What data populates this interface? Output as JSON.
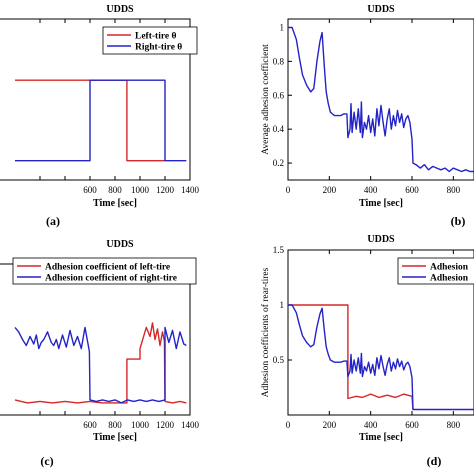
{
  "colors": {
    "red": "#d62728",
    "blue": "#2323c8",
    "axis": "#000000"
  },
  "chart_data": [
    {
      "panel": "a",
      "type": "line",
      "title": "UDDS",
      "xlabel": "Time [sec]",
      "ylabel": "",
      "panel_label": "(a)",
      "xlim": [
        -200,
        1400
      ],
      "ylim": [
        0,
        1
      ],
      "xticks": [
        200,
        400,
        600,
        800,
        1000,
        1200,
        1400
      ],
      "xtick_labels": [
        "",
        "",
        "600",
        "800",
        "1000",
        "1200",
        "1400"
      ],
      "yticks": [],
      "ytick_labels": [],
      "legend": "top-right",
      "series": [
        {
          "name": "Left-tire θ",
          "color": "red",
          "x": [
            0,
            895,
            895,
            1200
          ],
          "y": [
            0.62,
            0.62,
            0.12,
            0.12
          ]
        },
        {
          "name": "Right-tire θ",
          "color": "blue",
          "x": [
            0,
            600,
            600,
            1200,
            1200,
            1370
          ],
          "y": [
            0.12,
            0.12,
            0.62,
            0.62,
            0.12,
            0.12
          ]
        }
      ]
    },
    {
      "panel": "b",
      "type": "line",
      "title": "UDDS",
      "xlabel": "Time [sec]",
      "ylabel": "Average adhesion coefficient",
      "panel_label": "(b)",
      "xlim": [
        0,
        900
      ],
      "ylim": [
        0.1,
        1.05
      ],
      "xticks": [
        0,
        200,
        400,
        600,
        800
      ],
      "xtick_labels": [
        "0",
        "200",
        "400",
        "600",
        "800"
      ],
      "yticks": [
        0.2,
        0.4,
        0.6,
        0.8,
        1
      ],
      "ytick_labels": [
        "0.2",
        "0.4",
        "0.6",
        "0.8",
        "1"
      ],
      "legend": "none",
      "series": [
        {
          "name": "",
          "color": "blue",
          "x": [
            0,
            20,
            40,
            55,
            70,
            90,
            110,
            125,
            140,
            155,
            165,
            175,
            185,
            195,
            205,
            215,
            225,
            240,
            255,
            270,
            285,
            290,
            300,
            305,
            310,
            320,
            330,
            340,
            350,
            355,
            360,
            370,
            380,
            390,
            400,
            410,
            420,
            430,
            440,
            450,
            460,
            470,
            480,
            490,
            500,
            510,
            520,
            530,
            540,
            550,
            560,
            570,
            580,
            590,
            600,
            605,
            620,
            640,
            660,
            680,
            700,
            720,
            740,
            760,
            780,
            800,
            820,
            840,
            860,
            880,
            900
          ],
          "y": [
            1.0,
            1.0,
            0.93,
            0.82,
            0.72,
            0.66,
            0.62,
            0.64,
            0.8,
            0.92,
            0.97,
            0.78,
            0.62,
            0.55,
            0.5,
            0.49,
            0.48,
            0.48,
            0.48,
            0.49,
            0.49,
            0.35,
            0.4,
            0.55,
            0.38,
            0.5,
            0.4,
            0.52,
            0.38,
            0.56,
            0.35,
            0.44,
            0.4,
            0.48,
            0.38,
            0.46,
            0.36,
            0.52,
            0.42,
            0.54,
            0.44,
            0.36,
            0.46,
            0.52,
            0.4,
            0.48,
            0.42,
            0.51,
            0.44,
            0.49,
            0.41,
            0.46,
            0.48,
            0.44,
            0.34,
            0.2,
            0.19,
            0.17,
            0.19,
            0.16,
            0.18,
            0.17,
            0.16,
            0.17,
            0.15,
            0.17,
            0.16,
            0.15,
            0.16,
            0.15,
            0.15
          ]
        }
      ]
    },
    {
      "panel": "c",
      "type": "line",
      "title": "UDDS",
      "xlabel": "Time [sec]",
      "ylabel": "",
      "panel_label": "(c)",
      "xlim": [
        -200,
        1400
      ],
      "ylim": [
        0,
        1
      ],
      "xticks": [
        200,
        400,
        600,
        800,
        1000,
        1200,
        1400
      ],
      "xtick_labels": [
        "",
        "",
        "600",
        "800",
        "1000",
        "1200",
        "1400"
      ],
      "yticks": [],
      "ytick_labels": [],
      "legend": "top-right",
      "series": [
        {
          "name": "Adhesion coefficient of left-tire",
          "color": "red",
          "x": [
            0,
            100,
            200,
            300,
            400,
            500,
            600,
            700,
            800,
            895,
            895,
            1000,
            1000,
            1050,
            1080,
            1100,
            1120,
            1140,
            1160,
            1180,
            1195,
            1200,
            1260,
            1320,
            1370
          ],
          "y": [
            0.1,
            0.08,
            0.09,
            0.08,
            0.09,
            0.08,
            0.09,
            0.08,
            0.08,
            0.08,
            0.37,
            0.37,
            0.44,
            0.58,
            0.52,
            0.61,
            0.5,
            0.57,
            0.46,
            0.55,
            0.49,
            0.09,
            0.08,
            0.09,
            0.08
          ]
        },
        {
          "name": "Adhesion coefficient of right-tire",
          "color": "blue",
          "x": [
            0,
            30,
            60,
            90,
            120,
            150,
            170,
            190,
            210,
            230,
            260,
            290,
            310,
            330,
            350,
            380,
            410,
            440,
            470,
            500,
            530,
            560,
            595,
            600,
            650,
            700,
            750,
            800,
            850,
            900,
            950,
            1000,
            1050,
            1100,
            1150,
            1200,
            1200,
            1230,
            1260,
            1290,
            1320,
            1350,
            1370
          ],
          "y": [
            0.58,
            0.55,
            0.5,
            0.46,
            0.52,
            0.47,
            0.53,
            0.44,
            0.48,
            0.5,
            0.55,
            0.48,
            0.46,
            0.5,
            0.44,
            0.53,
            0.45,
            0.56,
            0.46,
            0.52,
            0.44,
            0.58,
            0.42,
            0.1,
            0.09,
            0.1,
            0.09,
            0.1,
            0.08,
            0.1,
            0.09,
            0.1,
            0.09,
            0.1,
            0.09,
            0.1,
            0.58,
            0.48,
            0.56,
            0.44,
            0.55,
            0.47,
            0.46
          ]
        }
      ]
    },
    {
      "panel": "d",
      "type": "line",
      "title": "UDDS",
      "xlabel": "Time [sec]",
      "ylabel": "Adhesion coefficients of rear-tires",
      "panel_label": "(d)",
      "xlim": [
        0,
        900
      ],
      "ylim": [
        0,
        1.5
      ],
      "xticks": [
        0,
        200,
        400,
        600,
        800
      ],
      "xtick_labels": [
        "0",
        "200",
        "400",
        "600",
        "800"
      ],
      "yticks": [
        0.5,
        1,
        1.5
      ],
      "ytick_labels": [
        "0.5",
        "1",
        "1.5"
      ],
      "legend": "top-right",
      "series": [
        {
          "name": "Adhesion",
          "color": "red",
          "x": [
            0,
            290,
            290,
            330,
            360,
            400,
            440,
            480,
            520,
            560,
            600,
            605
          ],
          "y": [
            1.0,
            1.0,
            0.15,
            0.17,
            0.16,
            0.19,
            0.16,
            0.18,
            0.16,
            0.19,
            0.17,
            0.05
          ]
        },
        {
          "name": "Adhesion",
          "color": "blue",
          "x": [
            0,
            20,
            40,
            55,
            70,
            90,
            110,
            125,
            140,
            155,
            165,
            175,
            185,
            195,
            205,
            215,
            225,
            240,
            255,
            270,
            285,
            290,
            300,
            305,
            310,
            320,
            330,
            340,
            350,
            355,
            360,
            370,
            380,
            390,
            400,
            410,
            420,
            430,
            440,
            450,
            460,
            470,
            480,
            490,
            500,
            510,
            520,
            530,
            540,
            550,
            560,
            570,
            580,
            590,
            600,
            605,
            620,
            660,
            700,
            740,
            780,
            820,
            860,
            900
          ],
          "y": [
            1.0,
            1.0,
            0.93,
            0.82,
            0.72,
            0.66,
            0.62,
            0.64,
            0.8,
            0.92,
            0.97,
            0.78,
            0.62,
            0.55,
            0.5,
            0.49,
            0.48,
            0.48,
            0.48,
            0.49,
            0.49,
            0.35,
            0.4,
            0.55,
            0.38,
            0.5,
            0.4,
            0.52,
            0.38,
            0.56,
            0.35,
            0.44,
            0.4,
            0.48,
            0.38,
            0.46,
            0.36,
            0.52,
            0.42,
            0.54,
            0.44,
            0.36,
            0.46,
            0.52,
            0.4,
            0.48,
            0.42,
            0.51,
            0.44,
            0.49,
            0.41,
            0.46,
            0.48,
            0.44,
            0.34,
            0.05,
            0.05,
            0.05,
            0.05,
            0.05,
            0.05,
            0.05,
            0.05,
            0.05
          ]
        }
      ]
    }
  ]
}
